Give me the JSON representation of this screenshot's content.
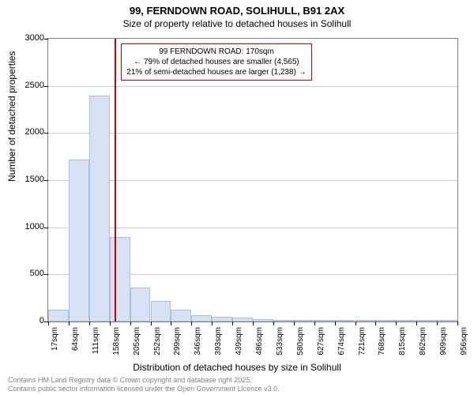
{
  "title": "99, FERNDOWN ROAD, SOLIHULL, B91 2AX",
  "subtitle": "Size of property relative to detached houses in Solihull",
  "chart": {
    "type": "histogram",
    "ylabel": "Number of detached properties",
    "xlabel": "Distribution of detached houses by size in Solihull",
    "ylim": [
      0,
      3000
    ],
    "ytick_step": 500,
    "yticks": [
      0,
      500,
      1000,
      1500,
      2000,
      2500,
      3000
    ],
    "bar_color": "#d6e2f3",
    "bar_border_color": "#a8c0e0",
    "grid_color": "#cccccc",
    "border_color": "#808080",
    "background_color": "#ffffff",
    "ref_line_color": "#cc0000",
    "ref_line_value": 170,
    "annotation_border_color": "#cc0000",
    "annotation": {
      "line1": "99 FERNDOWN ROAD: 170sqm",
      "line2": "← 79% of detached houses are smaller (4,565)",
      "line3": "21% of semi-detached houses are larger (1,238) →"
    },
    "x_start": 17,
    "x_bin_width": 47,
    "x_tick_labels": [
      "17sqm",
      "64sqm",
      "111sqm",
      "158sqm",
      "205sqm",
      "252sqm",
      "299sqm",
      "346sqm",
      "393sqm",
      "439sqm",
      "486sqm",
      "533sqm",
      "580sqm",
      "627sqm",
      "674sqm",
      "721sqm",
      "768sqm",
      "815sqm",
      "862sqm",
      "909sqm",
      "956sqm"
    ],
    "values": [
      130,
      1720,
      2400,
      900,
      360,
      220,
      130,
      70,
      50,
      40,
      25,
      10,
      8,
      6,
      4,
      3,
      2,
      2,
      1,
      1
    ]
  },
  "footer": {
    "line1": "Contains HM Land Registry data © Crown copyright and database right 2025.",
    "line2": "Contains public sector information licensed under the Open Government Licence v3.0."
  }
}
